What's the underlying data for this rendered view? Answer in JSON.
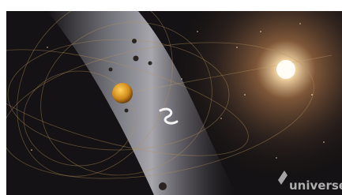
{
  "logo": {
    "text": "universe"
  }
}
